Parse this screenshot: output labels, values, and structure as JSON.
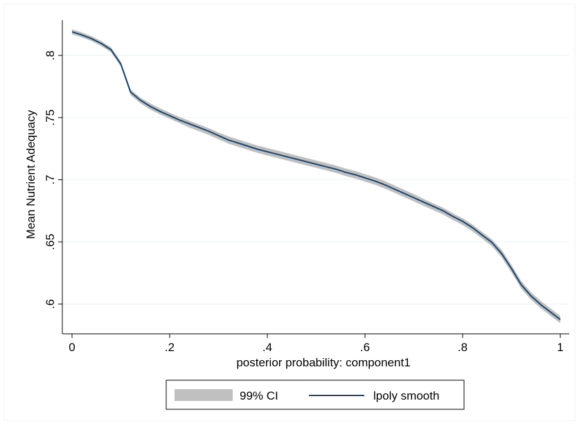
{
  "chart_data": {
    "type": "line",
    "title": "",
    "xlabel": "posterior probability: component1",
    "ylabel": "Mean Nutrient Adequacy",
    "xlim": [
      0,
      1
    ],
    "ylim": [
      0.588,
      0.82
    ],
    "xticks": [
      0,
      0.2,
      0.4,
      0.6,
      0.8,
      1
    ],
    "xtick_labels": [
      "0",
      ".2",
      ".4",
      ".6",
      ".8",
      "1"
    ],
    "yticks": [
      0.6,
      0.65,
      0.7,
      0.75,
      0.8
    ],
    "ytick_labels": [
      ".6",
      ".65",
      ".7",
      ".75",
      ".8"
    ],
    "grid": "horizontal",
    "legend_position": "bottom",
    "colors": {
      "line": "#1a476f",
      "ci_band": "#c0c0c0",
      "grid": "#eaf2f3",
      "axis": "#000000"
    },
    "series": [
      {
        "name": "99% CI",
        "kind": "band",
        "x": [
          0,
          0.02,
          0.04,
          0.06,
          0.08,
          0.1,
          0.12,
          0.14,
          0.16,
          0.18,
          0.2,
          0.22,
          0.24,
          0.26,
          0.28,
          0.3,
          0.32,
          0.34,
          0.36,
          0.38,
          0.4,
          0.42,
          0.44,
          0.46,
          0.48,
          0.5,
          0.52,
          0.54,
          0.56,
          0.58,
          0.6,
          0.62,
          0.64,
          0.66,
          0.68,
          0.7,
          0.72,
          0.74,
          0.76,
          0.78,
          0.8,
          0.82,
          0.84,
          0.86,
          0.88,
          0.9,
          0.92,
          0.94,
          0.96,
          0.98,
          1.0
        ],
        "lower": [
          0.817,
          0.8145,
          0.8115,
          0.8075,
          0.8025,
          0.791,
          0.768,
          0.7615,
          0.7565,
          0.7525,
          0.749,
          0.7455,
          0.742,
          0.739,
          0.736,
          0.7325,
          0.729,
          0.7265,
          0.724,
          0.7215,
          0.7195,
          0.7175,
          0.7155,
          0.7135,
          0.7115,
          0.7095,
          0.7075,
          0.7055,
          0.703,
          0.701,
          0.6985,
          0.696,
          0.693,
          0.6895,
          0.686,
          0.6825,
          0.679,
          0.6755,
          0.672,
          0.6675,
          0.6635,
          0.6585,
          0.6525,
          0.6465,
          0.6375,
          0.6255,
          0.6125,
          0.6035,
          0.5965,
          0.5905,
          0.5845
        ],
        "upper": [
          0.821,
          0.8185,
          0.8155,
          0.8115,
          0.8065,
          0.795,
          0.7725,
          0.766,
          0.7615,
          0.7575,
          0.754,
          0.7505,
          0.7475,
          0.7445,
          0.7415,
          0.738,
          0.735,
          0.7325,
          0.73,
          0.7275,
          0.7255,
          0.7235,
          0.7215,
          0.7195,
          0.7175,
          0.7155,
          0.7135,
          0.7115,
          0.709,
          0.707,
          0.7045,
          0.702,
          0.699,
          0.6955,
          0.692,
          0.6885,
          0.6845,
          0.681,
          0.6775,
          0.673,
          0.669,
          0.664,
          0.658,
          0.652,
          0.6435,
          0.6315,
          0.6185,
          0.6095,
          0.6025,
          0.5965,
          0.5905
        ]
      },
      {
        "name": "lpoly smooth",
        "kind": "line",
        "x": [
          0,
          0.02,
          0.04,
          0.06,
          0.08,
          0.1,
          0.12,
          0.14,
          0.16,
          0.18,
          0.2,
          0.22,
          0.24,
          0.26,
          0.28,
          0.3,
          0.32,
          0.34,
          0.36,
          0.38,
          0.4,
          0.42,
          0.44,
          0.46,
          0.48,
          0.5,
          0.52,
          0.54,
          0.56,
          0.58,
          0.6,
          0.62,
          0.64,
          0.66,
          0.68,
          0.7,
          0.72,
          0.74,
          0.76,
          0.78,
          0.8,
          0.82,
          0.84,
          0.86,
          0.88,
          0.9,
          0.92,
          0.94,
          0.96,
          0.98,
          1.0
        ],
        "y": [
          0.819,
          0.8165,
          0.8135,
          0.8095,
          0.8045,
          0.793,
          0.7705,
          0.764,
          0.759,
          0.755,
          0.7515,
          0.748,
          0.745,
          0.742,
          0.739,
          0.7355,
          0.732,
          0.7295,
          0.727,
          0.7245,
          0.7225,
          0.7205,
          0.7185,
          0.7165,
          0.7145,
          0.7125,
          0.7105,
          0.7085,
          0.706,
          0.704,
          0.7015,
          0.699,
          0.696,
          0.6925,
          0.689,
          0.6855,
          0.682,
          0.6785,
          0.675,
          0.6705,
          0.6665,
          0.6615,
          0.6555,
          0.6495,
          0.6405,
          0.6285,
          0.6155,
          0.6065,
          0.5995,
          0.5935,
          0.5875
        ]
      }
    ],
    "legend": {
      "items": [
        "99% CI",
        "lpoly smooth"
      ]
    }
  }
}
